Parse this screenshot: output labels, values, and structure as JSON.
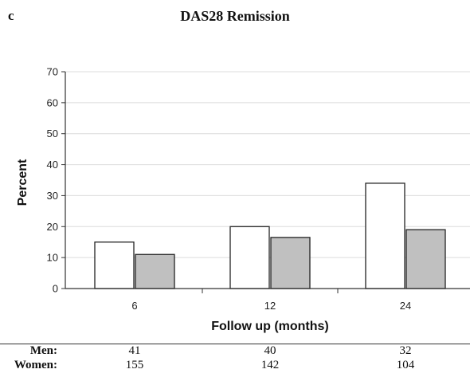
{
  "panel_label": "c",
  "chart_data": {
    "type": "bar",
    "title": "DAS28 Remission",
    "xlabel": "Follow up (months)",
    "ylabel": "Percent",
    "ylim": [
      0,
      70
    ],
    "yticks": [
      0,
      10,
      20,
      30,
      40,
      50,
      60,
      70
    ],
    "categories": [
      "6",
      "12",
      "24"
    ],
    "grid": "horizontal",
    "series": [
      {
        "name": "Men",
        "color": "#ffffff",
        "values": [
          15,
          20,
          34
        ]
      },
      {
        "name": "Women",
        "color": "#c0c0c0",
        "values": [
          11,
          16.5,
          19
        ]
      }
    ]
  },
  "counts_table": {
    "rows": [
      {
        "label": "Men:",
        "values": [
          "41",
          "40",
          "32"
        ]
      },
      {
        "label": "Women:",
        "values": [
          "155",
          "142",
          "104"
        ]
      }
    ]
  }
}
